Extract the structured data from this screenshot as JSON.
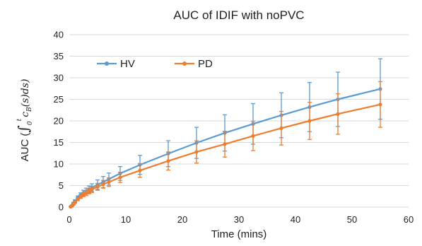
{
  "chart_data": {
    "type": "line",
    "title": "AUC of IDIF with noPVC",
    "xlabel": "Time (mins)",
    "ylabel": "AUC (∫₀ᵗ c_B(s) ds)",
    "ylabel_parts": {
      "prefix": "AUC (",
      "integral": "∫",
      "lower": "0",
      "upper": "t",
      "body": "c",
      "sub": "B",
      "rest": "(s)ds)"
    },
    "xlim": [
      0,
      60
    ],
    "ylim": [
      0,
      40
    ],
    "xticks": [
      "0",
      "10",
      "20",
      "30",
      "40",
      "50",
      "60"
    ],
    "yticks": [
      "0",
      "5",
      "10",
      "15",
      "20",
      "25",
      "30",
      "35",
      "40"
    ],
    "grid": "horizontal",
    "legend_position": "top-left",
    "series": [
      {
        "name": "HV",
        "color": "#5b9bd5",
        "x": [
          0.25,
          0.5,
          0.75,
          1.0,
          1.5,
          2.0,
          2.5,
          3.0,
          3.5,
          4.0,
          5.0,
          6.0,
          7.0,
          9.0,
          12.5,
          17.5,
          22.5,
          27.5,
          32.5,
          37.5,
          42.5,
          47.5,
          55.0
        ],
        "y": [
          0.1,
          0.4,
          0.9,
          1.4,
          2.2,
          2.8,
          3.3,
          3.7,
          4.1,
          4.5,
          5.2,
          5.8,
          6.5,
          7.8,
          9.8,
          12.4,
          14.9,
          17.2,
          19.3,
          21.3,
          23.2,
          25.0,
          27.4
        ],
        "err": [
          0.05,
          0.1,
          0.2,
          0.3,
          0.4,
          0.5,
          0.6,
          0.7,
          0.8,
          0.9,
          1.1,
          1.3,
          1.4,
          1.6,
          2.2,
          3.0,
          3.6,
          4.2,
          4.7,
          5.2,
          5.7,
          6.3,
          7.0
        ]
      },
      {
        "name": "PD",
        "color": "#ed7d31",
        "x": [
          0.25,
          0.5,
          0.75,
          1.0,
          1.5,
          2.0,
          2.5,
          3.0,
          3.5,
          4.0,
          5.0,
          6.0,
          7.0,
          9.0,
          12.5,
          17.5,
          22.5,
          27.5,
          32.5,
          37.5,
          42.5,
          47.5,
          55.0
        ],
        "y": [
          0.1,
          0.3,
          0.7,
          1.1,
          1.8,
          2.4,
          2.9,
          3.3,
          3.7,
          4.1,
          4.7,
          5.3,
          5.8,
          6.9,
          8.5,
          10.7,
          12.8,
          14.6,
          16.5,
          18.3,
          20.0,
          21.6,
          23.8
        ],
        "err": [
          0.05,
          0.1,
          0.2,
          0.2,
          0.3,
          0.4,
          0.5,
          0.6,
          0.6,
          0.7,
          0.8,
          0.9,
          1.0,
          1.2,
          1.6,
          2.1,
          2.6,
          3.0,
          3.4,
          3.9,
          4.3,
          4.7,
          5.3
        ]
      }
    ]
  }
}
